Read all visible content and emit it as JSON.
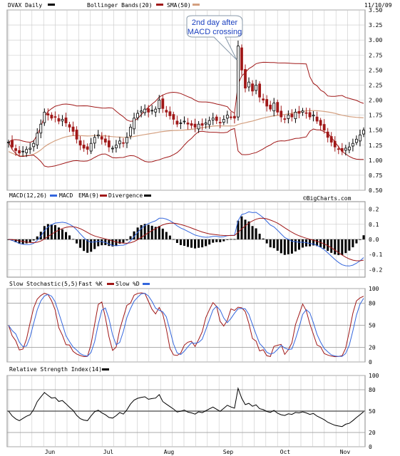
{
  "chart_data": [
    {
      "type": "candlestick",
      "legend": [
        {
          "label": "DVAX Daily",
          "color": "#000000"
        },
        {
          "label": "Bollinger Bands(20)",
          "color": "#a01818"
        },
        {
          "label": "SMA(50)",
          "color": "#d4a080"
        }
      ],
      "date_label": "11/10/09",
      "annotation": "2nd day after MACD crossing",
      "annotation_lines": [
        "2nd day after",
        "MACD crossing"
      ],
      "ylim": [
        0.5,
        3.5
      ],
      "yticks": [
        "3.50",
        "3.25",
        "3.00",
        "2.75",
        "2.50",
        "2.25",
        "2.00",
        "1.75",
        "1.50",
        "1.25",
        "1.00",
        "0.75",
        "0.50"
      ],
      "x_labels": [
        "Jun",
        "Jul",
        "Aug",
        "Sep",
        "Oct",
        "Nov"
      ],
      "close": [
        1.3,
        1.22,
        1.16,
        1.12,
        1.15,
        1.18,
        1.2,
        1.28,
        1.45,
        1.6,
        1.8,
        1.75,
        1.7,
        1.72,
        1.65,
        1.68,
        1.62,
        1.55,
        1.48,
        1.35,
        1.25,
        1.2,
        1.18,
        1.28,
        1.38,
        1.42,
        1.35,
        1.3,
        1.22,
        1.2,
        1.25,
        1.32,
        1.28,
        1.38,
        1.55,
        1.7,
        1.78,
        1.82,
        1.85,
        1.8,
        1.83,
        1.85,
        2.0,
        1.86,
        1.8,
        1.74,
        1.68,
        1.6,
        1.62,
        1.65,
        1.6,
        1.58,
        1.55,
        1.6,
        1.58,
        1.62,
        1.66,
        1.7,
        1.66,
        1.62,
        1.68,
        1.75,
        1.72,
        1.7,
        2.9,
        2.5,
        2.2,
        2.3,
        2.15,
        2.25,
        2.05,
        2.0,
        1.9,
        1.85,
        1.95,
        1.8,
        1.72,
        1.68,
        1.75,
        1.72,
        1.8,
        1.78,
        1.82,
        1.78,
        1.72,
        1.75,
        1.65,
        1.58,
        1.5,
        1.38,
        1.3,
        1.22,
        1.18,
        1.15,
        1.2,
        1.22,
        1.28,
        1.35,
        1.42,
        1.5
      ]
    },
    {
      "type": "line",
      "title": "MACD(12,26)",
      "series": [
        {
          "name": "MACD",
          "color": "#3366dd"
        },
        {
          "name": "EMA(9)",
          "color": "#a01818"
        },
        {
          "name": "Divergence",
          "color": "#000000"
        }
      ],
      "brand": "©BigCharts.com",
      "ylim": [
        -0.25,
        0.25
      ],
      "yticks": [
        "0.2",
        "0.1",
        "0.0",
        "-0.1",
        "-0.2"
      ]
    },
    {
      "type": "line",
      "title": "Slow Stochastic(5,5)",
      "series": [
        {
          "name": "Fast %K",
          "color": "#a01818"
        },
        {
          "name": "Slow %D",
          "color": "#3366dd"
        }
      ],
      "ylim": [
        0,
        100
      ],
      "yticks": [
        "100",
        "80",
        "50",
        "20",
        "0"
      ]
    },
    {
      "type": "line",
      "title": "Relative Strength Index(14)",
      "series": [
        {
          "name": "RSI",
          "color": "#000000"
        }
      ],
      "ylim": [
        0,
        100
      ],
      "yticks": [
        "100",
        "80",
        "50",
        "20",
        "0"
      ]
    }
  ]
}
